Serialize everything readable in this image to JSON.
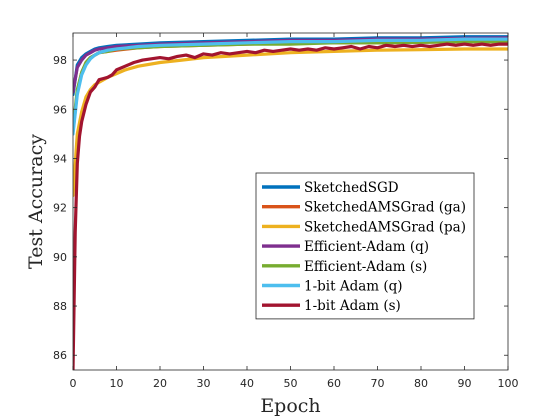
{
  "chart_data": {
    "type": "line",
    "xlabel": "Epoch",
    "ylabel": "Test Accuracy",
    "xlim": [
      0,
      100
    ],
    "ylim": [
      85.4,
      99.1
    ],
    "xticks": [
      0,
      10,
      20,
      30,
      40,
      50,
      60,
      70,
      80,
      90,
      100
    ],
    "yticks": [
      86,
      88,
      90,
      92,
      94,
      96,
      98
    ],
    "grid": false,
    "legend_position": "center-right",
    "series": [
      {
        "name": "SketchedSGD",
        "color": "#0072BD",
        "points": [
          [
            0,
            96.6
          ],
          [
            1,
            97.8
          ],
          [
            2,
            98.1
          ],
          [
            3,
            98.25
          ],
          [
            4,
            98.35
          ],
          [
            5,
            98.45
          ],
          [
            6,
            98.5
          ],
          [
            8,
            98.55
          ],
          [
            10,
            98.6
          ],
          [
            15,
            98.65
          ],
          [
            20,
            98.7
          ],
          [
            30,
            98.75
          ],
          [
            40,
            98.8
          ],
          [
            50,
            98.85
          ],
          [
            60,
            98.85
          ],
          [
            70,
            98.9
          ],
          [
            80,
            98.9
          ],
          [
            90,
            98.95
          ],
          [
            100,
            98.95
          ]
        ]
      },
      {
        "name": "SketchedAMSGrad (ga)",
        "color": "#D95319",
        "points": [
          [
            0,
            95.1
          ],
          [
            1,
            96.7
          ],
          [
            2,
            97.5
          ],
          [
            3,
            97.9
          ],
          [
            4,
            98.1
          ],
          [
            5,
            98.2
          ],
          [
            6,
            98.3
          ],
          [
            8,
            98.35
          ],
          [
            10,
            98.4
          ],
          [
            15,
            98.5
          ],
          [
            20,
            98.55
          ],
          [
            30,
            98.6
          ],
          [
            40,
            98.65
          ],
          [
            50,
            98.7
          ],
          [
            60,
            98.7
          ],
          [
            70,
            98.7
          ],
          [
            80,
            98.72
          ],
          [
            90,
            98.75
          ],
          [
            100,
            98.75
          ]
        ]
      },
      {
        "name": "SketchedAMSGrad (pa)",
        "color": "#EDB120",
        "points": [
          [
            0,
            92.5
          ],
          [
            1,
            95.0
          ],
          [
            2,
            95.9
          ],
          [
            3,
            96.5
          ],
          [
            4,
            96.8
          ],
          [
            5,
            97.0
          ],
          [
            6,
            97.1
          ],
          [
            8,
            97.3
          ],
          [
            10,
            97.45
          ],
          [
            12,
            97.6
          ],
          [
            15,
            97.75
          ],
          [
            20,
            97.9
          ],
          [
            25,
            98.0
          ],
          [
            30,
            98.1
          ],
          [
            40,
            98.2
          ],
          [
            50,
            98.3
          ],
          [
            60,
            98.35
          ],
          [
            70,
            98.4
          ],
          [
            80,
            98.42
          ],
          [
            90,
            98.45
          ],
          [
            100,
            98.45
          ]
        ]
      },
      {
        "name": "Efficient-Adam (q)",
        "color": "#7E2F8E",
        "points": [
          [
            0,
            96.7
          ],
          [
            1,
            97.7
          ],
          [
            2,
            98.0
          ],
          [
            3,
            98.2
          ],
          [
            4,
            98.3
          ],
          [
            5,
            98.4
          ],
          [
            6,
            98.45
          ],
          [
            8,
            98.5
          ],
          [
            10,
            98.55
          ],
          [
            15,
            98.6
          ],
          [
            20,
            98.65
          ],
          [
            30,
            98.7
          ],
          [
            40,
            98.75
          ],
          [
            50,
            98.8
          ],
          [
            60,
            98.8
          ],
          [
            70,
            98.85
          ],
          [
            80,
            98.85
          ],
          [
            90,
            98.88
          ],
          [
            100,
            98.9
          ]
        ]
      },
      {
        "name": "Efficient-Adam (s)",
        "color": "#77AC30",
        "points": [
          [
            0,
            95.2
          ],
          [
            1,
            96.8
          ],
          [
            2,
            97.5
          ],
          [
            3,
            97.9
          ],
          [
            4,
            98.1
          ],
          [
            5,
            98.2
          ],
          [
            6,
            98.3
          ],
          [
            8,
            98.35
          ],
          [
            10,
            98.45
          ],
          [
            15,
            98.5
          ],
          [
            20,
            98.55
          ],
          [
            30,
            98.6
          ],
          [
            40,
            98.65
          ],
          [
            50,
            98.65
          ],
          [
            60,
            98.7
          ],
          [
            70,
            98.7
          ],
          [
            80,
            98.72
          ],
          [
            90,
            98.75
          ],
          [
            100,
            98.75
          ]
        ]
      },
      {
        "name": "1-bit Adam (q)",
        "color": "#4DBEEE",
        "points": [
          [
            0,
            95.0
          ],
          [
            1,
            96.6
          ],
          [
            2,
            97.4
          ],
          [
            3,
            97.8
          ],
          [
            4,
            98.05
          ],
          [
            5,
            98.2
          ],
          [
            6,
            98.3
          ],
          [
            8,
            98.4
          ],
          [
            10,
            98.45
          ],
          [
            15,
            98.55
          ],
          [
            20,
            98.6
          ],
          [
            30,
            98.65
          ],
          [
            40,
            98.7
          ],
          [
            50,
            98.75
          ],
          [
            60,
            98.75
          ],
          [
            70,
            98.8
          ],
          [
            80,
            98.8
          ],
          [
            90,
            98.85
          ],
          [
            100,
            98.85
          ]
        ]
      },
      {
        "name": "1-bit Adam (s)",
        "color": "#A2142F",
        "points": [
          [
            0,
            85.4
          ],
          [
            0.5,
            91.0
          ],
          [
            1,
            93.8
          ],
          [
            1.5,
            94.9
          ],
          [
            2,
            95.5
          ],
          [
            3,
            96.2
          ],
          [
            4,
            96.7
          ],
          [
            5,
            96.9
          ],
          [
            6,
            97.2
          ],
          [
            7,
            97.25
          ],
          [
            8,
            97.3
          ],
          [
            9,
            97.4
          ],
          [
            10,
            97.6
          ],
          [
            12,
            97.75
          ],
          [
            14,
            97.9
          ],
          [
            16,
            98.0
          ],
          [
            18,
            98.05
          ],
          [
            20,
            98.1
          ],
          [
            22,
            98.05
          ],
          [
            24,
            98.15
          ],
          [
            26,
            98.2
          ],
          [
            28,
            98.1
          ],
          [
            30,
            98.25
          ],
          [
            32,
            98.2
          ],
          [
            34,
            98.3
          ],
          [
            36,
            98.25
          ],
          [
            38,
            98.3
          ],
          [
            40,
            98.35
          ],
          [
            42,
            98.3
          ],
          [
            44,
            98.4
          ],
          [
            46,
            98.35
          ],
          [
            48,
            98.4
          ],
          [
            50,
            98.45
          ],
          [
            52,
            98.4
          ],
          [
            54,
            98.45
          ],
          [
            56,
            98.4
          ],
          [
            58,
            98.5
          ],
          [
            60,
            98.45
          ],
          [
            62,
            98.5
          ],
          [
            64,
            98.55
          ],
          [
            66,
            98.45
          ],
          [
            68,
            98.55
          ],
          [
            70,
            98.5
          ],
          [
            72,
            98.6
          ],
          [
            74,
            98.55
          ],
          [
            76,
            98.6
          ],
          [
            78,
            98.55
          ],
          [
            80,
            98.6
          ],
          [
            82,
            98.55
          ],
          [
            84,
            98.6
          ],
          [
            86,
            98.65
          ],
          [
            88,
            98.6
          ],
          [
            90,
            98.65
          ],
          [
            92,
            98.6
          ],
          [
            94,
            98.65
          ],
          [
            96,
            98.6
          ],
          [
            98,
            98.65
          ],
          [
            100,
            98.65
          ]
        ]
      }
    ]
  }
}
